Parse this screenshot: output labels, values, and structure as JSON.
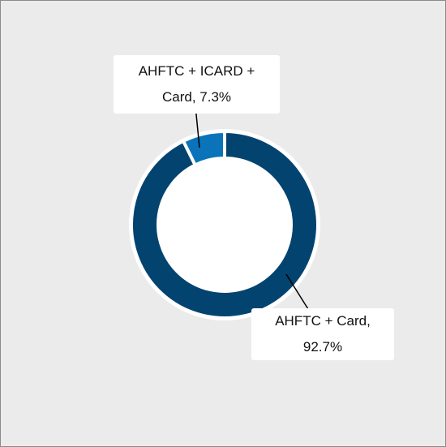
{
  "chart_data": {
    "type": "donut",
    "values": [
      92.7,
      7.3
    ],
    "value_labels": [
      "AHFTC + Card, 92.7%",
      "AHFTC + ICARD + Card, 7.3%"
    ],
    "colors": [
      "#03436f",
      "#0a73b9"
    ]
  }
}
